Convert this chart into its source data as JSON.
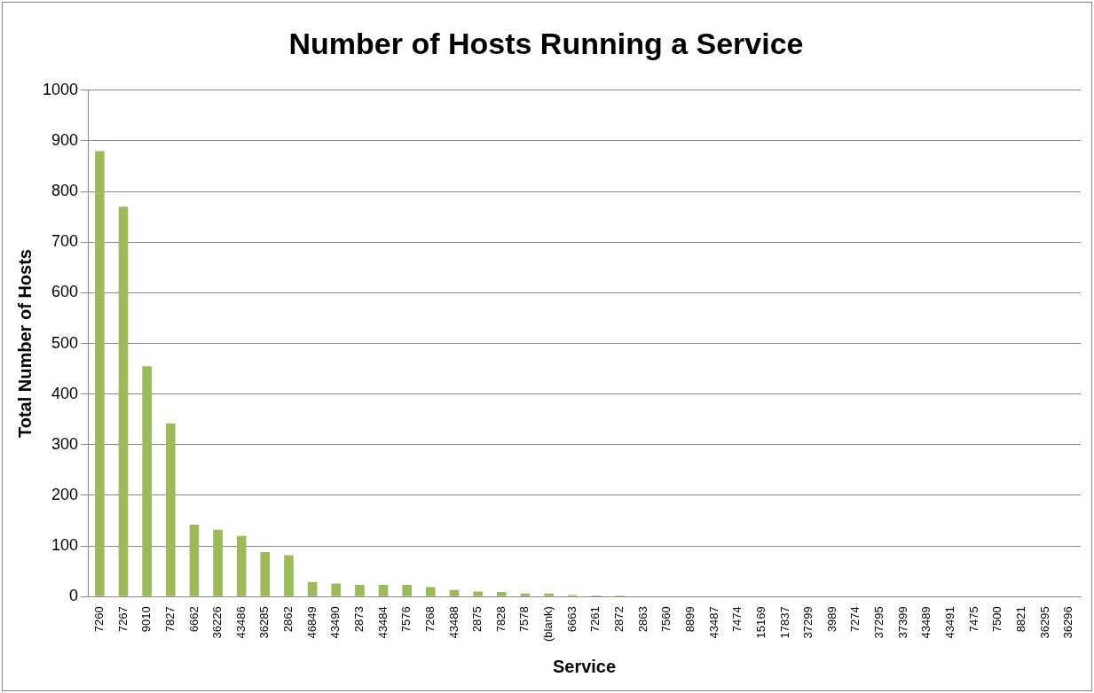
{
  "chart_data": {
    "type": "bar",
    "title": "Number of Hosts Running a Service",
    "xlabel": "Service",
    "ylabel": "Total Number of Hosts",
    "categories": [
      "7260",
      "7267",
      "9010",
      "7827",
      "6662",
      "36226",
      "43486",
      "36285",
      "2862",
      "46849",
      "43490",
      "2873",
      "43484",
      "7576",
      "7268",
      "43488",
      "2875",
      "7828",
      "7578",
      "(blank)",
      "6663",
      "7261",
      "2872",
      "2863",
      "7560",
      "8899",
      "43487",
      "7474",
      "15169",
      "17837",
      "37299",
      "3989",
      "7274",
      "37295",
      "37399",
      "43489",
      "43491",
      "7475",
      "7500",
      "8821",
      "36295",
      "36296"
    ],
    "values": [
      880,
      770,
      455,
      342,
      142,
      132,
      120,
      88,
      82,
      29,
      26,
      23,
      23,
      23,
      19,
      13,
      10,
      9,
      6,
      6,
      3,
      2,
      2,
      1,
      1,
      1,
      1,
      1,
      1,
      1,
      1,
      1,
      1,
      1,
      1,
      1,
      1,
      1,
      1,
      1,
      1,
      1
    ],
    "color": "#9bbb59",
    "ylim": [
      0,
      1000
    ],
    "yticks": [
      0,
      100,
      200,
      300,
      400,
      500,
      600,
      700,
      800,
      900,
      1000
    ],
    "grid": "y",
    "legend": false
  }
}
